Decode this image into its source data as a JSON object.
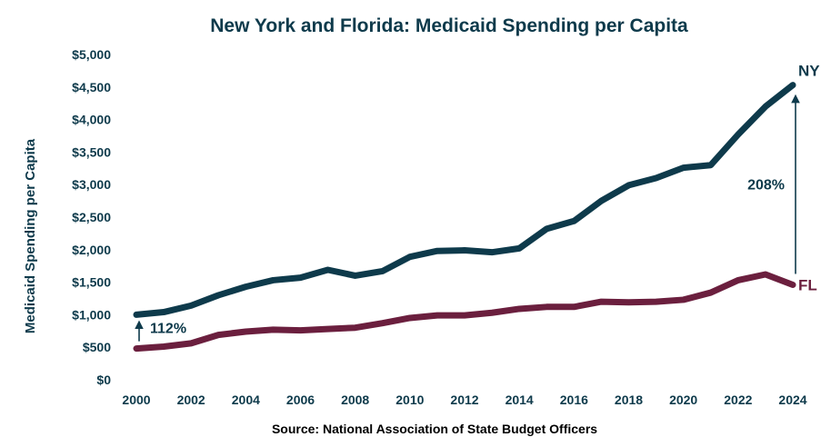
{
  "chart_data": {
    "type": "line",
    "title": "New York and Florida: Medicaid Spending per Capita",
    "xlabel": "",
    "ylabel": "Medicaid Spending per Capita",
    "source": "Source: National Association of State Budget Officers",
    "x": [
      2000,
      2001,
      2002,
      2003,
      2004,
      2005,
      2006,
      2007,
      2008,
      2009,
      2010,
      2011,
      2012,
      2013,
      2014,
      2015,
      2016,
      2017,
      2018,
      2019,
      2020,
      2021,
      2022,
      2023,
      2024
    ],
    "x_ticks": [
      "2000",
      "2002",
      "2004",
      "2006",
      "2008",
      "2010",
      "2012",
      "2014",
      "2016",
      "2018",
      "2020",
      "2022",
      "2024"
    ],
    "ylim": [
      0,
      5000
    ],
    "y_ticks": [
      "$0",
      "$500",
      "$1,000",
      "$1,500",
      "$2,000",
      "$2,500",
      "$3,000",
      "$3,500",
      "$4,000",
      "$4,500",
      "$5,000"
    ],
    "series": [
      {
        "name": "NY",
        "color": "#0e3a4b",
        "values": [
          1000,
          1040,
          1140,
          1300,
          1430,
          1530,
          1570,
          1690,
          1600,
          1670,
          1890,
          1980,
          1990,
          1960,
          2020,
          2320,
          2440,
          2750,
          2990,
          3100,
          3260,
          3300,
          3770,
          4200,
          4530
        ]
      },
      {
        "name": "FL",
        "color": "#6b1f3e",
        "values": [
          480,
          510,
          560,
          690,
          740,
          770,
          760,
          780,
          800,
          870,
          950,
          990,
          990,
          1030,
          1090,
          1120,
          1120,
          1200,
          1190,
          1200,
          1230,
          1340,
          1530,
          1620,
          1460
        ]
      }
    ],
    "annotations": [
      {
        "text": "112%",
        "year": 2000
      },
      {
        "text": "208%",
        "year": 2024
      }
    ]
  }
}
